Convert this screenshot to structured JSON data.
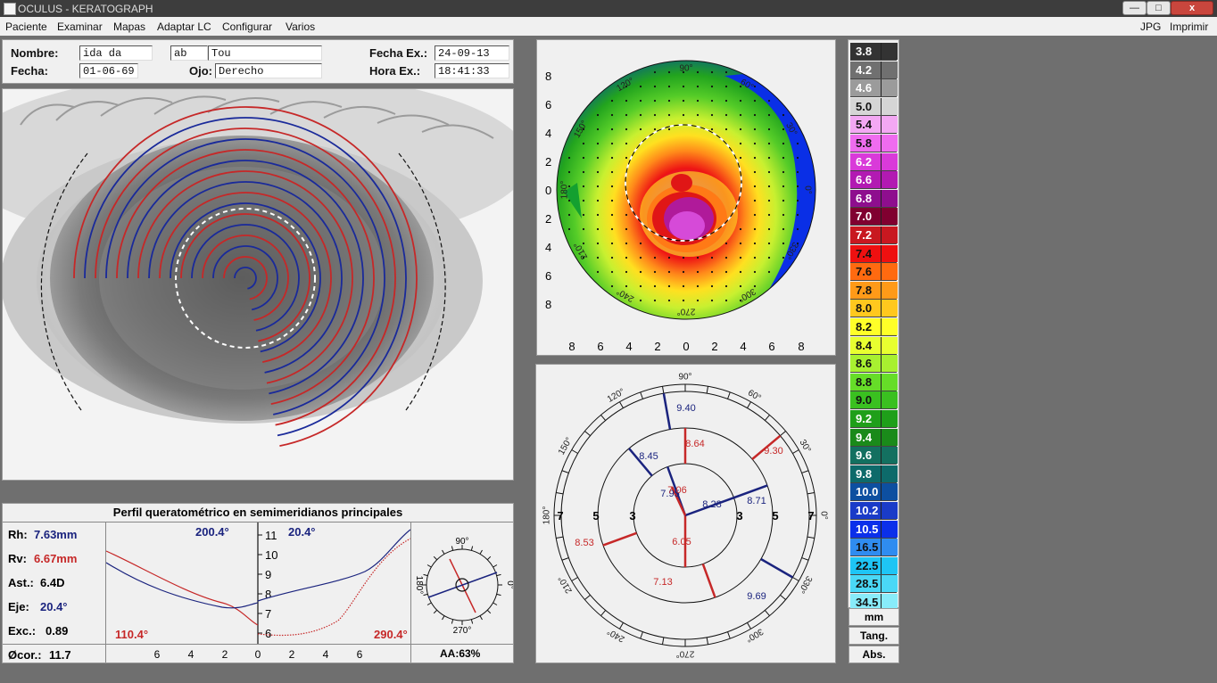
{
  "window": {
    "title": "OCULUS  -  KERATOGRAPH",
    "controls": {
      "minimize": "—",
      "maximize": "□",
      "close": "x"
    }
  },
  "menu": {
    "left": [
      "Paciente",
      "Examinar",
      "Mapas",
      "Adaptar LC",
      "Configurar",
      "Varios"
    ],
    "right": [
      "JPG",
      "Imprimir"
    ]
  },
  "patient": {
    "nombre_label": "Nombre:",
    "nombre_value": "ida   da  ",
    "nombre_extra": "ab",
    "nombre_extra2": "Tou",
    "fecha_label": "Fecha:",
    "fecha_value": "01-06-69",
    "ojo_label": "Ojo:",
    "ojo_value": "Derecho",
    "fecha_ex_label": "Fecha Ex.:",
    "fecha_ex_value": "24-09-13",
    "hora_ex_label": "Hora Ex.:",
    "hora_ex_value": "18:41:33"
  },
  "topomap": {
    "x_ticks": [
      "8",
      "6",
      "4",
      "2",
      "0",
      "2",
      "4",
      "6",
      "8"
    ],
    "y_ticks": [
      "8",
      "6",
      "4",
      "2",
      "0",
      "2",
      "4",
      "6",
      "8"
    ],
    "angle_labels": [
      "90°",
      "60°",
      "30°",
      "0°",
      "330°",
      "300°",
      "270°",
      "240°",
      "210°",
      "180°",
      "150°",
      "120°"
    ]
  },
  "radius_map": {
    "values": [
      {
        "text": "9.40",
        "color": "#1a237e"
      },
      {
        "text": "8.64",
        "color": "#c62828"
      },
      {
        "text": "9.30",
        "color": "#c62828"
      },
      {
        "text": "8.45",
        "color": "#1a237e"
      },
      {
        "text": "7.95",
        "color": "#1a237e"
      },
      {
        "text": "7.06",
        "color": "#c62828"
      },
      {
        "text": "8.28",
        "color": "#1a237e"
      },
      {
        "text": "8.71",
        "color": "#1a237e"
      },
      {
        "text": "8.53",
        "color": "#c62828"
      },
      {
        "text": "6.05",
        "color": "#c62828"
      },
      {
        "text": "7.13",
        "color": "#c62828"
      },
      {
        "text": "9.69",
        "color": "#1a237e"
      }
    ],
    "ring_labels": [
      "7",
      "5",
      "3",
      "3",
      "5",
      "7"
    ],
    "angle_labels": [
      "90°",
      "60°",
      "30°",
      "0°",
      "330°",
      "300°",
      "270°",
      "240°",
      "210°",
      "180°",
      "150°",
      "120°"
    ]
  },
  "profile": {
    "title": "Perfil queratométrico en semimeridianos principales",
    "rh_label": "Rh:",
    "rh_value": "7.63mm",
    "rv_label": "Rv:",
    "rv_value": "6.67mm",
    "ast_label": "Ast.:",
    "ast_value": "6.4D",
    "eje_label": "Eje:",
    "eje_value": "20.4°",
    "exc_label": "Exc.:",
    "exc_value": "0.89",
    "cor_label": "Øcor.:",
    "cor_value": "11.7",
    "axis_200": "200.4°",
    "axis_20": "20.4°",
    "axis_110": "110.4°",
    "axis_290": "290.4°",
    "y_ticks": [
      "11",
      "10",
      "9",
      "8",
      "7",
      "6"
    ],
    "x_ticks": [
      "6",
      "4",
      "2",
      "0",
      "2",
      "4",
      "6"
    ],
    "compass_top": "90°",
    "compass_left": "180°",
    "compass_right": "0°",
    "compass_bottom": "270°",
    "aa": "AA:63%"
  },
  "scale": {
    "values": [
      "3.8",
      "4.2",
      "4.6",
      "5.0",
      "5.4",
      "5.8",
      "6.2",
      "6.6",
      "6.8",
      "7.0",
      "7.2",
      "7.4",
      "7.6",
      "7.8",
      "8.0",
      "8.2",
      "8.4",
      "8.6",
      "8.8",
      "9.0",
      "9.2",
      "9.4",
      "9.6",
      "9.8",
      "10.0",
      "10.2",
      "10.5",
      "16.5",
      "22.5",
      "28.5",
      "34.5"
    ],
    "colors": [
      "#333333",
      "#707070",
      "#9b9b9b",
      "#d5d5d5",
      "#f3a8f3",
      "#ef6cef",
      "#d93ad9",
      "#b21ab2",
      "#8e0e8e",
      "#800030",
      "#c81820",
      "#ee1010",
      "#ff6a10",
      "#ff9a18",
      "#ffc81e",
      "#ffff28",
      "#e8ff30",
      "#a8f030",
      "#66dd28",
      "#3ac020",
      "#1f9f1a",
      "#1a8a1a",
      "#137060",
      "#0d6a6a",
      "#0d4fa0",
      "#1a3bc8",
      "#0b2fea",
      "#2f8cf0",
      "#1ec5f5",
      "#4ad8f6",
      "#88ecfa"
    ],
    "unit": "mm",
    "btn_tang": "Tang.",
    "btn_abs": "Abs."
  }
}
